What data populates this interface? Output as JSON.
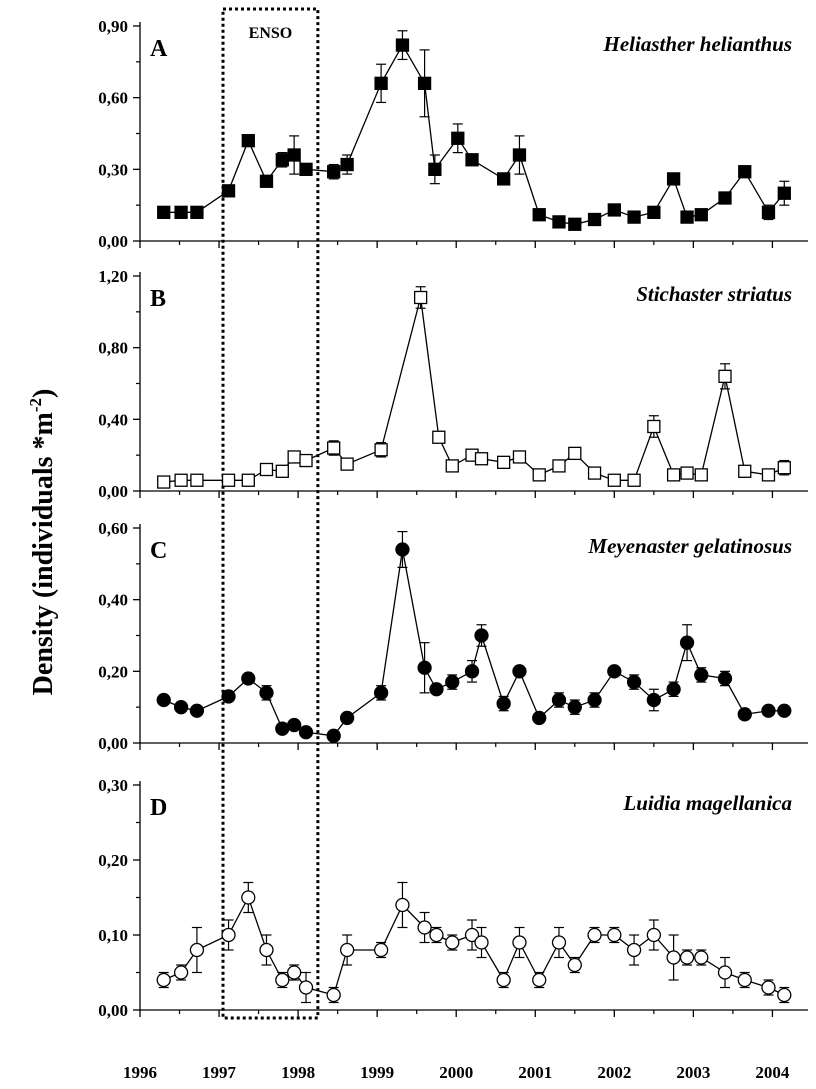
{
  "chart_data": {
    "type": "line",
    "ylabel": "Density (individuals *m",
    "ylabel_sup": "-2",
    "ylabel_close": ")",
    "x_ticks": [
      "1996",
      "1997",
      "1998",
      "1999",
      "2000",
      "2001",
      "2002",
      "2003",
      "2004"
    ],
    "xlim": [
      1996,
      2004.45
    ],
    "enso": {
      "label": "ENSO",
      "x_range": [
        1997.05,
        1998.25
      ]
    },
    "panels": [
      {
        "letter": "A",
        "species": "Heliasther helianthus",
        "marker": "filled-square",
        "ylim": [
          0,
          0.9
        ],
        "y_ticks": [
          "0,00",
          "0,30",
          "0,60",
          "0,90"
        ],
        "x": [
          1996.3,
          1996.52,
          1996.72,
          1997.12,
          1997.37,
          1997.6,
          1997.8,
          1997.95,
          1998.1,
          1998.45,
          1998.62,
          1999.05,
          1999.32,
          1999.6,
          1999.73,
          2000.02,
          2000.2,
          2000.6,
          2000.8,
          2001.05,
          2001.3,
          2001.5,
          2001.75,
          2002.0,
          2002.25,
          2002.5,
          2002.75,
          2002.92,
          2003.1,
          2003.4,
          2003.65,
          2003.95,
          2004.15
        ],
        "y": [
          0.12,
          0.12,
          0.12,
          0.21,
          0.42,
          0.25,
          0.34,
          0.36,
          0.3,
          0.29,
          0.32,
          0.66,
          0.82,
          0.66,
          0.3,
          0.43,
          0.34,
          0.26,
          0.36,
          0.11,
          0.08,
          0.07,
          0.09,
          0.13,
          0.1,
          0.12,
          0.26,
          0.1,
          0.11,
          0.18,
          0.29,
          0.12,
          0.2
        ],
        "err": [
          0.02,
          0.02,
          0.02,
          0.02,
          0.02,
          0.02,
          0.03,
          0.08,
          0.02,
          0.03,
          0.04,
          0.08,
          0.06,
          0.14,
          0.06,
          0.06,
          0.02,
          0.02,
          0.08,
          0.02,
          0.02,
          0.02,
          0.02,
          0.02,
          0.02,
          0.02,
          0.02,
          0.02,
          0.02,
          0.02,
          0.02,
          0.03,
          0.05
        ]
      },
      {
        "letter": "B",
        "species": "Stichaster striatus",
        "marker": "open-square",
        "ylim": [
          0,
          1.2
        ],
        "y_ticks": [
          "0,00",
          "0,40",
          "0,80",
          "1,20"
        ],
        "x": [
          1996.3,
          1996.52,
          1996.72,
          1997.12,
          1997.37,
          1997.6,
          1997.8,
          1997.95,
          1998.1,
          1998.45,
          1998.62,
          1999.05,
          1999.55,
          1999.78,
          1999.95,
          2000.2,
          2000.32,
          2000.6,
          2000.8,
          2001.05,
          2001.3,
          2001.5,
          2001.75,
          2002.0,
          2002.25,
          2002.5,
          2002.75,
          2002.92,
          2003.1,
          2003.4,
          2003.65,
          2003.95,
          2004.15
        ],
        "y": [
          0.05,
          0.06,
          0.06,
          0.06,
          0.06,
          0.12,
          0.11,
          0.19,
          0.17,
          0.24,
          0.15,
          0.23,
          1.08,
          0.3,
          0.14,
          0.2,
          0.18,
          0.16,
          0.19,
          0.09,
          0.14,
          0.21,
          0.1,
          0.06,
          0.06,
          0.36,
          0.09,
          0.1,
          0.09,
          0.64,
          0.11,
          0.09,
          0.13
        ],
        "err": [
          0.02,
          0.02,
          0.02,
          0.02,
          0.02,
          0.03,
          0.02,
          0.03,
          0.02,
          0.04,
          0.02,
          0.04,
          0.06,
          0.02,
          0.02,
          0.02,
          0.02,
          0.02,
          0.02,
          0.02,
          0.02,
          0.02,
          0.02,
          0.02,
          0.02,
          0.06,
          0.02,
          0.02,
          0.02,
          0.07,
          0.02,
          0.02,
          0.04
        ]
      },
      {
        "letter": "C",
        "species": "Meyenaster gelatinosus",
        "marker": "filled-circle",
        "ylim": [
          0,
          0.6
        ],
        "y_ticks": [
          "0,00",
          "0,20",
          "0,40",
          "0,60"
        ],
        "x": [
          1996.3,
          1996.52,
          1996.72,
          1997.12,
          1997.37,
          1997.6,
          1997.8,
          1997.95,
          1998.1,
          1998.45,
          1998.62,
          1999.05,
          1999.32,
          1999.6,
          1999.75,
          1999.95,
          2000.2,
          2000.32,
          2000.6,
          2000.8,
          2001.05,
          2001.3,
          2001.5,
          2001.75,
          2002.0,
          2002.25,
          2002.5,
          2002.75,
          2002.92,
          2003.1,
          2003.4,
          2003.65,
          2003.95,
          2004.15
        ],
        "y": [
          0.12,
          0.1,
          0.09,
          0.13,
          0.18,
          0.14,
          0.04,
          0.05,
          0.03,
          0.02,
          0.07,
          0.14,
          0.54,
          0.21,
          0.15,
          0.17,
          0.2,
          0.3,
          0.11,
          0.2,
          0.07,
          0.12,
          0.1,
          0.12,
          0.2,
          0.17,
          0.12,
          0.15,
          0.28,
          0.19,
          0.18,
          0.08,
          0.09,
          0.09
        ],
        "err": [
          0.01,
          0.01,
          0.01,
          0.01,
          0.01,
          0.02,
          0.01,
          0.01,
          0.01,
          0.01,
          0.01,
          0.02,
          0.05,
          0.07,
          0.01,
          0.02,
          0.03,
          0.03,
          0.02,
          0.01,
          0.01,
          0.02,
          0.02,
          0.02,
          0.01,
          0.02,
          0.03,
          0.02,
          0.05,
          0.02,
          0.02,
          0.01,
          0.01,
          0.01
        ]
      },
      {
        "letter": "D",
        "species": "Luidia magellanica",
        "marker": "open-circle",
        "ylim": [
          0,
          0.3
        ],
        "y_ticks": [
          "0,00",
          "0,10",
          "0,20",
          "0,30"
        ],
        "x": [
          1996.3,
          1996.52,
          1996.72,
          1997.12,
          1997.37,
          1997.6,
          1997.8,
          1997.95,
          1998.1,
          1998.45,
          1998.62,
          1999.05,
          1999.32,
          1999.6,
          1999.75,
          1999.95,
          2000.2,
          2000.32,
          2000.6,
          2000.8,
          2001.05,
          2001.3,
          2001.5,
          2001.75,
          2002.0,
          2002.25,
          2002.5,
          2002.75,
          2002.92,
          2003.1,
          2003.4,
          2003.65,
          2003.95,
          2004.15
        ],
        "y": [
          0.04,
          0.05,
          0.08,
          0.1,
          0.15,
          0.08,
          0.04,
          0.05,
          0.03,
          0.02,
          0.08,
          0.08,
          0.14,
          0.11,
          0.1,
          0.09,
          0.1,
          0.09,
          0.04,
          0.09,
          0.04,
          0.09,
          0.06,
          0.1,
          0.1,
          0.08,
          0.1,
          0.07,
          0.07,
          0.07,
          0.05,
          0.04,
          0.03,
          0.02
        ],
        "err": [
          0.01,
          0.01,
          0.03,
          0.02,
          0.02,
          0.02,
          0.01,
          0.01,
          0.02,
          0.01,
          0.02,
          0.01,
          0.03,
          0.02,
          0.01,
          0.01,
          0.02,
          0.02,
          0.01,
          0.02,
          0.01,
          0.02,
          0.01,
          0.01,
          0.01,
          0.02,
          0.02,
          0.03,
          0.01,
          0.01,
          0.02,
          0.01,
          0.01,
          0.01
        ]
      }
    ]
  }
}
